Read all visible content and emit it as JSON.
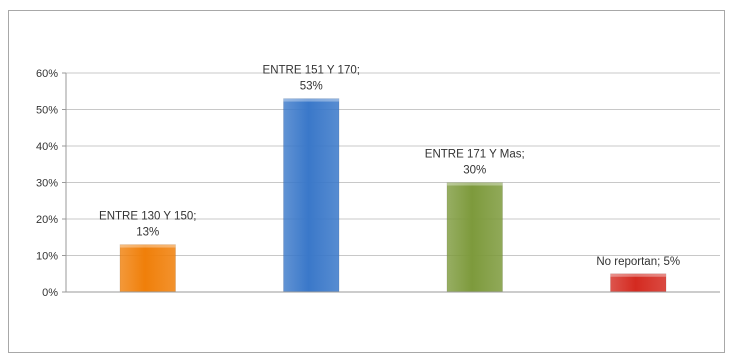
{
  "chart_data": {
    "type": "bar",
    "title": "",
    "xlabel": "",
    "ylabel": "",
    "categories": [
      "ENTRE 130 Y 150",
      "ENTRE 151 Y 170",
      "ENTRE 171 Y Mas",
      "No reportan"
    ],
    "values": [
      13,
      53,
      30,
      5
    ],
    "data_labels": [
      [
        "ENTRE 130 Y 150;",
        "13%"
      ],
      [
        "ENTRE 151 Y 170;",
        "53%"
      ],
      [
        "ENTRE 171 Y Mas;",
        "30%"
      ],
      [
        "No reportan; 5%"
      ]
    ],
    "y_ticks": [
      "0%",
      "10%",
      "20%",
      "30%",
      "40%",
      "50%",
      "60%"
    ],
    "ylim": [
      0,
      60
    ],
    "grid": true,
    "legend": "none",
    "colors": [
      "#f07f09",
      "#3a78c9",
      "#7d9a3c",
      "#d42a20"
    ],
    "grid_color": "#c8c8c8",
    "axis_color": "#9a9a9a"
  }
}
